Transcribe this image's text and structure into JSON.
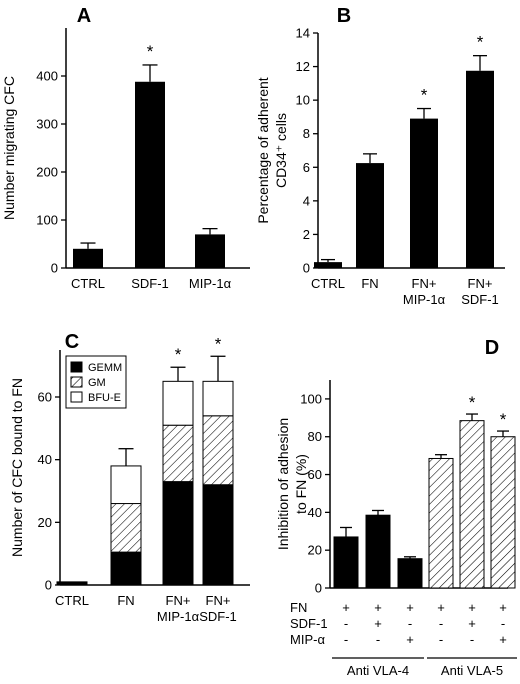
{
  "chart_data": [
    {
      "panel": "A",
      "type": "bar",
      "ylabel": "Number migrating CFC",
      "ylim": [
        0,
        500
      ],
      "yticks": [
        0,
        100,
        200,
        300,
        400
      ],
      "categories": [
        "CTRL",
        "SDF-1",
        "MIP-1α"
      ],
      "values": [
        40,
        388,
        70
      ],
      "errors": [
        12,
        35,
        12
      ],
      "significant": [
        false,
        true,
        false
      ],
      "fill": "solid"
    },
    {
      "panel": "B",
      "type": "bar",
      "ylabel_lines": [
        "Percentage of adherent",
        "CD34⁺ cells"
      ],
      "ylim": [
        0,
        14
      ],
      "yticks": [
        0,
        2,
        4,
        6,
        8,
        10,
        12,
        14
      ],
      "categories": [
        [
          "CTRL"
        ],
        [
          "FN"
        ],
        [
          "FN+",
          "MIP-1α"
        ],
        [
          "FN+",
          "SDF-1"
        ]
      ],
      "values": [
        0.35,
        6.25,
        8.9,
        11.75
      ],
      "errors": [
        0.15,
        0.55,
        0.6,
        0.9
      ],
      "significant": [
        false,
        false,
        true,
        true
      ],
      "fill": "solid"
    },
    {
      "panel": "C",
      "type": "bar",
      "stacked": true,
      "ylabel": "Number of CFC bound to FN",
      "ylim": [
        0,
        75
      ],
      "yticks": [
        0,
        20,
        40,
        60
      ],
      "categories": [
        [
          "CTRL"
        ],
        [
          "FN"
        ],
        [
          "FN+",
          "MIP-1α"
        ],
        [
          "FN+",
          "SDF-1"
        ]
      ],
      "series": [
        {
          "name": "GEMM",
          "fill": "solid",
          "values": [
            1,
            10.5,
            33,
            32
          ],
          "errors": [
            0,
            1.5,
            3,
            2.5
          ]
        },
        {
          "name": "GM",
          "fill": "hatch",
          "values": [
            0,
            15.5,
            18,
            22
          ],
          "errors": [
            0,
            3,
            2.5,
            2.5
          ]
        },
        {
          "name": "BFU-E",
          "fill": "white",
          "values": [
            0,
            12,
            14,
            11
          ],
          "errors": [
            0,
            5.5,
            4.5,
            8
          ]
        }
      ],
      "significant": [
        false,
        false,
        true,
        true
      ]
    },
    {
      "panel": "D",
      "type": "bar",
      "ylabel_lines": [
        "Inhibition of adhesion",
        "to FN (%)"
      ],
      "ylim": [
        0,
        110
      ],
      "yticks": [
        0,
        20,
        40,
        60,
        80,
        100
      ],
      "values": [
        27,
        38.5,
        15.5,
        68.5,
        88.5,
        80
      ],
      "errors": [
        5,
        2.5,
        1,
        2,
        3.5,
        3
      ],
      "fills": [
        "solid",
        "solid",
        "solid",
        "hatch",
        "hatch",
        "hatch"
      ],
      "significant": [
        false,
        false,
        false,
        false,
        true,
        true
      ],
      "table": [
        {
          "label": "FN",
          "marks": [
            "+",
            "+",
            "+",
            "+",
            "+",
            "+"
          ]
        },
        {
          "label": "SDF-1",
          "marks": [
            "-",
            "+",
            "-",
            "-",
            "+",
            "-"
          ]
        },
        {
          "label": "MIP-α",
          "marks": [
            "-",
            "-",
            "+",
            "-",
            "-",
            "+"
          ]
        }
      ],
      "groups": [
        {
          "label": "Anti VLA-4",
          "bars": [
            0,
            1,
            2
          ]
        },
        {
          "label": "Anti VLA-5",
          "bars": [
            3,
            4,
            5
          ]
        }
      ]
    }
  ]
}
